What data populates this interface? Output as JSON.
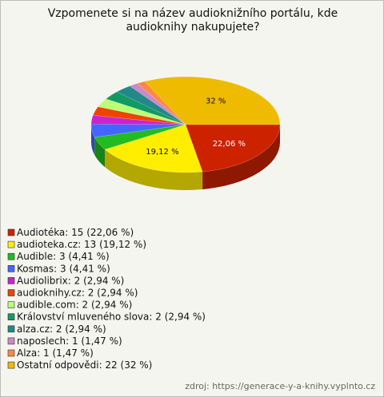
{
  "chart_data": {
    "type": "pie",
    "title": "Vzpomenete si na název audioknižního portálu, kde audioknihy nakupujete?",
    "categories": [
      "Audiotéka",
      "audioteka.cz",
      "Audible",
      "Kosmas",
      "Audiolibrix",
      "audioknihy.cz",
      "audible.com",
      "Království mluveného slova",
      "alza.cz",
      "naposlech",
      "Alza",
      "Ostatní odpovědi"
    ],
    "legend_labels": [
      "Audiotéka: 15 (22,06 %)",
      "audioteka.cz: 13 (19,12 %)",
      "Audible: 3 (4,41 %)",
      "Kosmas: 3 (4,41 %)",
      "Audiolibrix: 2 (2,94 %)",
      "audioknihy.cz: 2 (2,94 %)",
      "audible.com: 2 (2,94 %)",
      "Království mluveného slova: 2 (2,94 %)",
      "alza.cz: 2 (2,94 %)",
      "naposlech: 1 (1,47 %)",
      "Alza: 1 (1,47 %)",
      "Ostatní odpovědi: 22 (32 %)"
    ],
    "values": [
      22.06,
      19.12,
      4.41,
      4.41,
      2.94,
      2.94,
      2.94,
      2.94,
      2.94,
      1.47,
      1.47,
      32
    ],
    "value_labels": [
      "22,06 %",
      "19,12 %",
      null,
      null,
      null,
      null,
      null,
      null,
      null,
      null,
      null,
      "32 %"
    ],
    "colors": [
      "#cc2200",
      "#ffee00",
      "#22bb22",
      "#4466ff",
      "#cc22cc",
      "#ee4400",
      "#bbff77",
      "#119966",
      "#228888",
      "#cc88cc",
      "#ff8844",
      "#eebb00"
    ],
    "source": "zdroj: https://generace-y-a-knihy.vyplnto.cz"
  }
}
